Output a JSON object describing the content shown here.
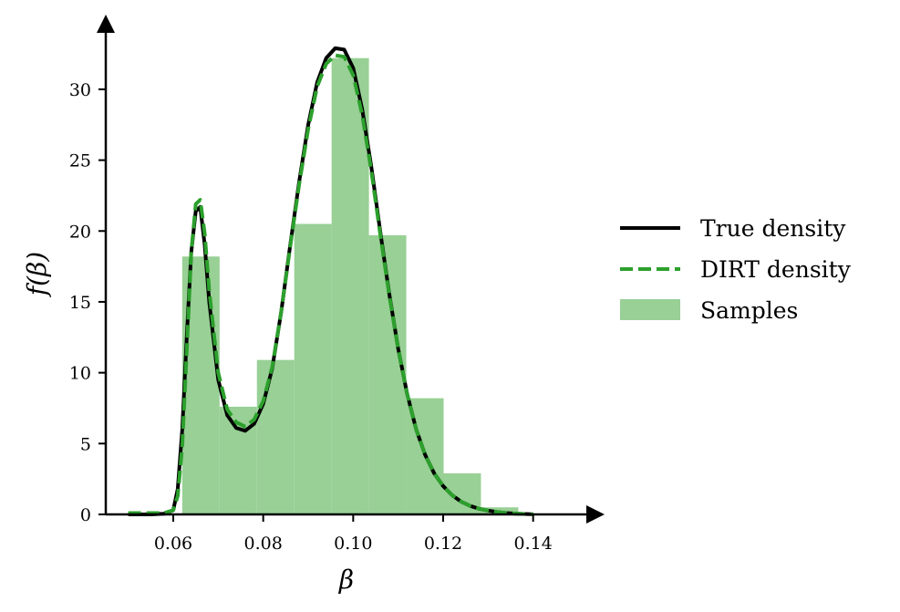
{
  "chart_data": {
    "type": "line",
    "xlabel": "β",
    "ylabel": "f(β)",
    "xlim": [
      0.045,
      0.15
    ],
    "ylim": [
      0,
      34.5
    ],
    "xticks": [
      {
        "value": 0.06,
        "label": "0.06"
      },
      {
        "value": 0.08,
        "label": "0.08"
      },
      {
        "value": 0.1,
        "label": "0.10"
      },
      {
        "value": 0.12,
        "label": "0.12"
      },
      {
        "value": 0.14,
        "label": "0.14"
      }
    ],
    "yticks": [
      {
        "value": 0,
        "label": "0"
      },
      {
        "value": 5,
        "label": "5"
      },
      {
        "value": 10,
        "label": "10"
      },
      {
        "value": 15,
        "label": "15"
      },
      {
        "value": 20,
        "label": "20"
      },
      {
        "value": 25,
        "label": "25"
      },
      {
        "value": 30,
        "label": "30"
      }
    ],
    "grid": false,
    "legend_position": "right",
    "histogram": {
      "name": "Samples",
      "color": "#98d095",
      "bins": [
        {
          "x0": 0.062,
          "x1": 0.0703,
          "height": 18.2
        },
        {
          "x0": 0.0703,
          "x1": 0.0786,
          "height": 7.6
        },
        {
          "x0": 0.0786,
          "x1": 0.0869,
          "height": 10.9
        },
        {
          "x0": 0.0869,
          "x1": 0.0952,
          "height": 20.5
        },
        {
          "x0": 0.0952,
          "x1": 0.1035,
          "height": 32.2
        },
        {
          "x0": 0.1035,
          "x1": 0.1118,
          "height": 19.7
        },
        {
          "x0": 0.1118,
          "x1": 0.1201,
          "height": 8.2
        },
        {
          "x0": 0.1201,
          "x1": 0.1284,
          "height": 2.9
        },
        {
          "x0": 0.1284,
          "x1": 0.1367,
          "height": 0.5
        }
      ]
    },
    "series": [
      {
        "name": "True density",
        "color": "#000000",
        "style": "solid",
        "x": [
          0.05,
          0.055,
          0.058,
          0.06,
          0.061,
          0.062,
          0.063,
          0.064,
          0.065,
          0.066,
          0.067,
          0.068,
          0.07,
          0.072,
          0.074,
          0.076,
          0.078,
          0.08,
          0.082,
          0.084,
          0.086,
          0.088,
          0.09,
          0.092,
          0.094,
          0.096,
          0.098,
          0.1,
          0.102,
          0.104,
          0.106,
          0.108,
          0.11,
          0.112,
          0.114,
          0.116,
          0.118,
          0.12,
          0.122,
          0.124,
          0.126,
          0.128,
          0.13,
          0.132,
          0.134,
          0.136,
          0.138,
          0.14
        ],
        "y": [
          0.0,
          0.0,
          0.05,
          0.3,
          1.8,
          6.0,
          12.5,
          18.5,
          21.4,
          21.7,
          19.0,
          15.0,
          9.5,
          7.0,
          6.1,
          5.9,
          6.4,
          7.8,
          10.3,
          14.3,
          19.0,
          23.5,
          27.5,
          30.5,
          32.2,
          32.9,
          32.8,
          31.5,
          28.6,
          24.6,
          20.0,
          15.6,
          11.7,
          8.5,
          6.0,
          4.2,
          2.9,
          2.0,
          1.35,
          0.9,
          0.6,
          0.4,
          0.27,
          0.17,
          0.1,
          0.06,
          0.03,
          0.01
        ]
      },
      {
        "name": "DIRT density",
        "color": "#2ca02c",
        "style": "dashed",
        "x": [
          0.05,
          0.055,
          0.058,
          0.06,
          0.061,
          0.062,
          0.063,
          0.064,
          0.065,
          0.066,
          0.067,
          0.068,
          0.07,
          0.072,
          0.074,
          0.076,
          0.078,
          0.08,
          0.082,
          0.084,
          0.086,
          0.088,
          0.09,
          0.092,
          0.094,
          0.096,
          0.098,
          0.1,
          0.102,
          0.104,
          0.106,
          0.108,
          0.11,
          0.112,
          0.114,
          0.116,
          0.118,
          0.12,
          0.122,
          0.124,
          0.126,
          0.128,
          0.13,
          0.132,
          0.134,
          0.136,
          0.138,
          0.14
        ],
        "y": [
          0.1,
          0.1,
          0.1,
          0.3,
          1.3,
          4.8,
          11.5,
          18.5,
          21.9,
          22.2,
          19.8,
          15.8,
          10.0,
          7.4,
          6.5,
          6.2,
          6.7,
          8.0,
          10.4,
          14.3,
          18.9,
          23.3,
          27.2,
          30.2,
          31.8,
          32.4,
          32.3,
          31.0,
          28.2,
          24.3,
          19.8,
          15.5,
          11.7,
          8.5,
          6.0,
          4.2,
          2.9,
          2.0,
          1.35,
          0.9,
          0.6,
          0.4,
          0.27,
          0.17,
          0.1,
          0.06,
          0.03,
          0.01
        ]
      }
    ],
    "legend": [
      {
        "label": "True density",
        "kind": "line-solid",
        "color": "#000000"
      },
      {
        "label": "DIRT density",
        "kind": "line-dashed",
        "color": "#2ca02c"
      },
      {
        "label": "Samples",
        "kind": "patch",
        "color": "#98d095"
      }
    ]
  }
}
